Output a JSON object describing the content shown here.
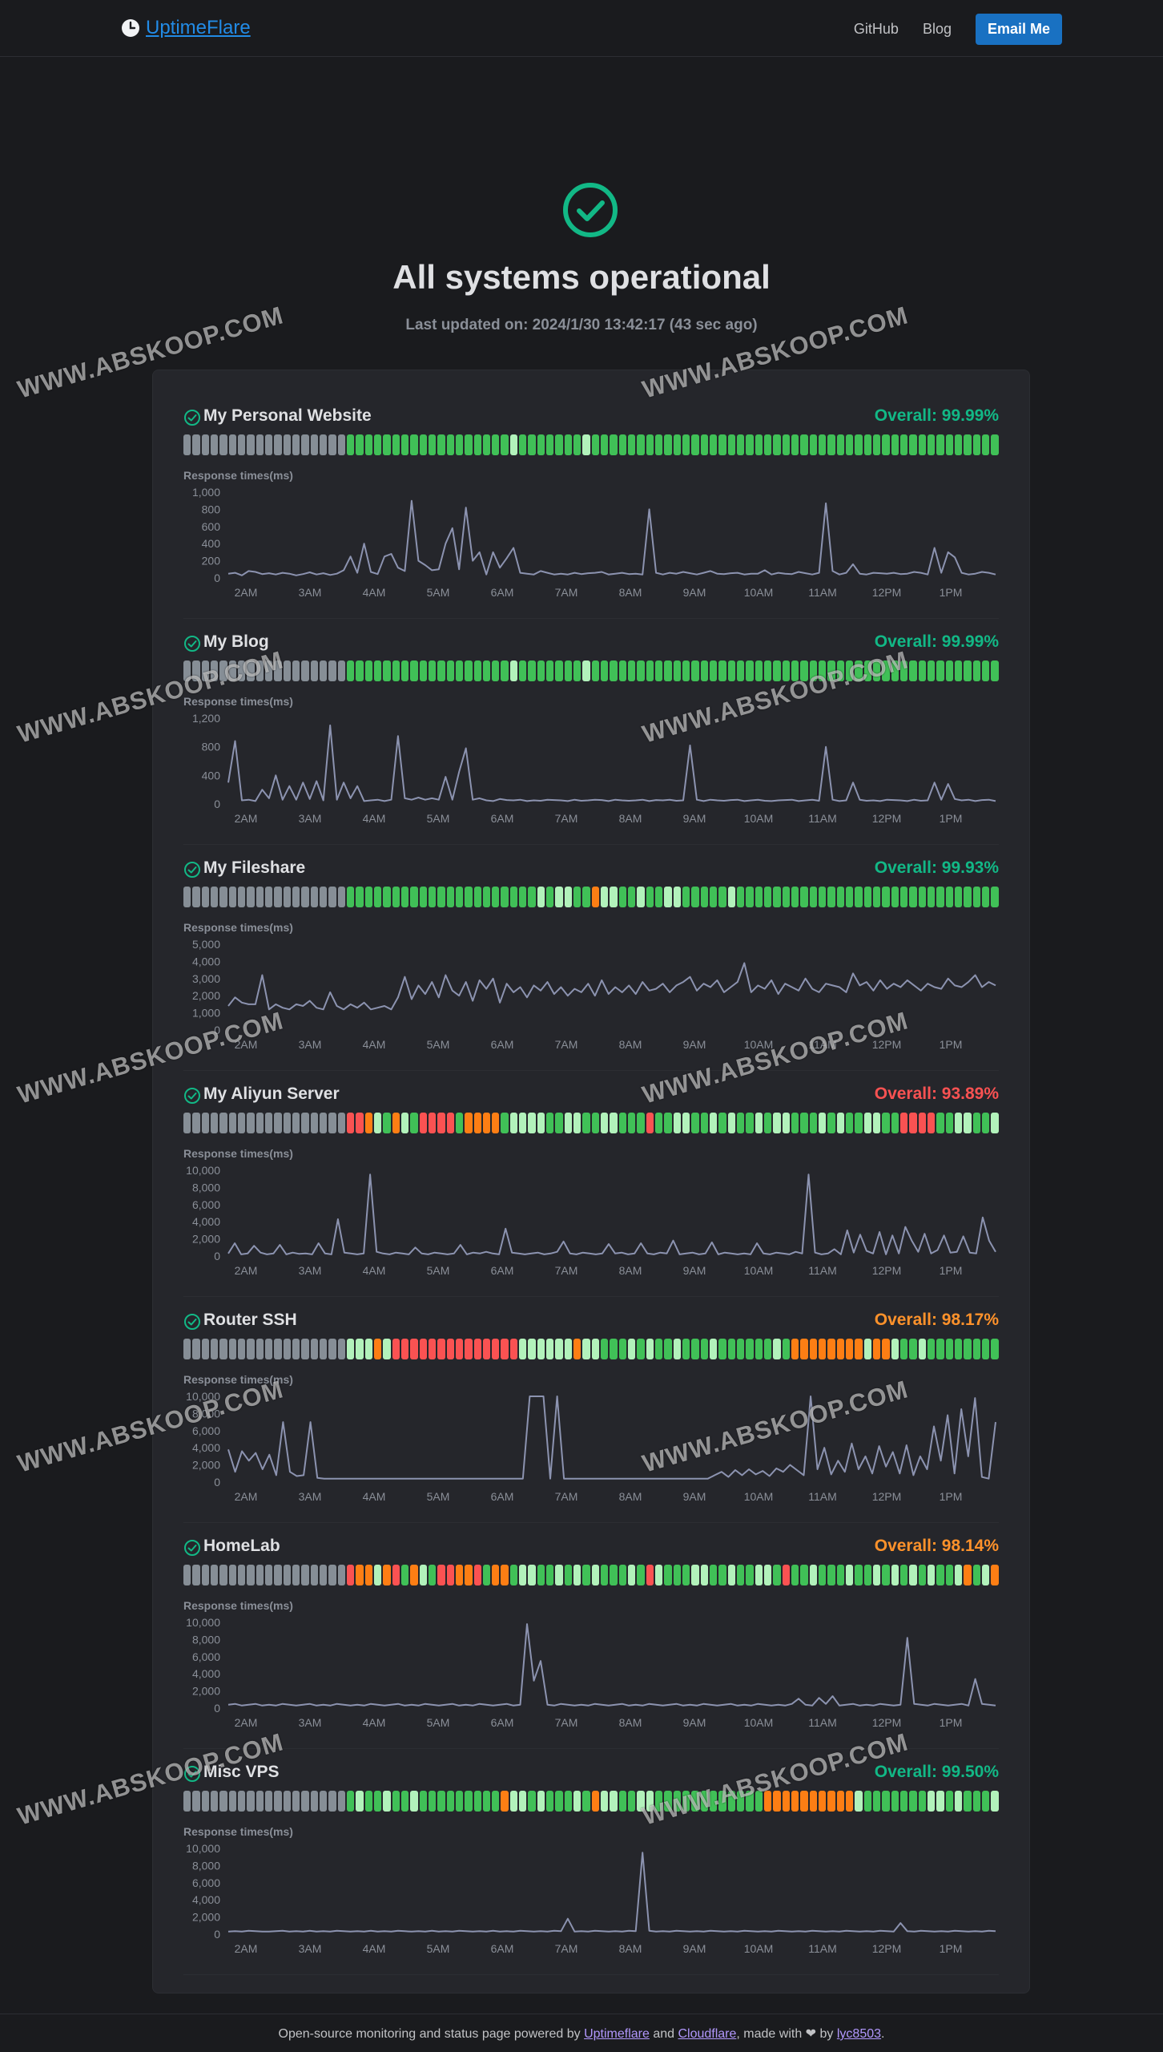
{
  "header": {
    "brand": "UptimeFlare",
    "links": [
      "GitHub",
      "Blog"
    ],
    "email_button": "Email Me"
  },
  "status": {
    "title": "All systems operational",
    "last_updated": "Last updated on: 2024/1/30 13:42:17 (43 sec ago)"
  },
  "chart_label": "Response times(ms)",
  "time_ticks": [
    "2AM",
    "3AM",
    "4AM",
    "5AM",
    "6AM",
    "7AM",
    "8AM",
    "9AM",
    "10AM",
    "11AM",
    "12PM",
    "1PM"
  ],
  "colors": {
    "green": "#40c057",
    "light_green": "#b2f2bb",
    "gray": "#868e96",
    "orange": "#fd7e14",
    "red": "#fa5252",
    "overall_green": "#12b886",
    "overall_orange": "#ff922b",
    "overall_red": "#fa5252",
    "line": "#8c93b0"
  },
  "watermark_text": "WWW.ABSKOOP.COM",
  "monitors": [
    {
      "name": "My Personal Website",
      "overall": "Overall: 99.99%",
      "overall_color": "#12b886",
      "status_bars": "GGGGGGGGGGGGGGGGGGNNNNNNNNNNNNNNNNNNLNNNNNNNLNNNNNNNNNNNNNNNNNNNNNNNNNNNNNNNNNNNNNNNNNNNNNN",
      "y_ticks": [
        "1,000",
        "800",
        "600",
        "400",
        "200",
        "0"
      ],
      "y_max": 1000,
      "chart_data": {
        "type": "line",
        "y": [
          50,
          60,
          30,
          80,
          70,
          45,
          55,
          40,
          60,
          50,
          30,
          45,
          65,
          40,
          55,
          35,
          50,
          90,
          250,
          60,
          400,
          70,
          45,
          250,
          280,
          120,
          80,
          900,
          200,
          150,
          90,
          100,
          400,
          580,
          100,
          820,
          200,
          300,
          40,
          300,
          120,
          230,
          350,
          60,
          50,
          40,
          80,
          60,
          40,
          50,
          40,
          60,
          45,
          55,
          60,
          70,
          40,
          50,
          60,
          45,
          50,
          40,
          800,
          60,
          40,
          60,
          50,
          70,
          55,
          40,
          60,
          80,
          50,
          45,
          55,
          60,
          40,
          50,
          50,
          90,
          40,
          60,
          50,
          45,
          70,
          55,
          40,
          60,
          870,
          80,
          40,
          60,
          160,
          50,
          40,
          60,
          55,
          50,
          60,
          45,
          50,
          70,
          60,
          40,
          350,
          60,
          300,
          240,
          60,
          40,
          50,
          70,
          60,
          40
        ]
      }
    },
    {
      "name": "My Blog",
      "overall": "Overall: 99.99%",
      "overall_color": "#12b886",
      "status_bars": "GGGGGGGGGGGGGGGGGGNNNNNNNNNNNNNNNNNNLNNNNNNNLNNNNNNNNNNNNNNNNNNNNNNNNNNNNNNNNNNNNNNNNNNNNNN",
      "y_ticks": [
        "1,200",
        "800",
        "400",
        "0"
      ],
      "y_max": 1200,
      "chart_data": {
        "type": "line",
        "y": [
          300,
          880,
          50,
          60,
          40,
          200,
          80,
          400,
          60,
          250,
          60,
          300,
          70,
          320,
          50,
          1100,
          60,
          300,
          80,
          250,
          40,
          50,
          60,
          40,
          60,
          950,
          80,
          60,
          90,
          60,
          80,
          60,
          380,
          60,
          450,
          780,
          60,
          80,
          50,
          40,
          70,
          55,
          50,
          60,
          40,
          50,
          45,
          60,
          55,
          50,
          40,
          60,
          45,
          50,
          60,
          55,
          40,
          60,
          50,
          45,
          50,
          60,
          40,
          55,
          50,
          60,
          45,
          50,
          820,
          60,
          40,
          60,
          50,
          45,
          55,
          60,
          40,
          50,
          60,
          45,
          40,
          50,
          55,
          60,
          40,
          50,
          60,
          45,
          800,
          60,
          40,
          50,
          300,
          60,
          45,
          50,
          40,
          60,
          55,
          50,
          40,
          60,
          45,
          50,
          300,
          60,
          280,
          70,
          50,
          60,
          40,
          55,
          60,
          40
        ]
      }
    },
    {
      "name": "My Fileshare",
      "overall": "Overall: 99.93%",
      "overall_color": "#12b886",
      "status_bars": "GGGGGGGGGGGGGGGGGGNNNNNNNNNNNNNNNNNNNNNLNLLNNOLLNNLNNLLNNNNNLNNNNNNNNNNNNNNNNNNNNNNNNNNNNNN",
      "y_ticks": [
        "5,000",
        "4,000",
        "3,000",
        "2,000",
        "1,000",
        "0"
      ],
      "y_max": 5000,
      "chart_data": {
        "type": "line",
        "y": [
          1400,
          1900,
          1600,
          1500,
          1500,
          3200,
          1200,
          1500,
          1300,
          1200,
          1500,
          1400,
          1700,
          1300,
          1200,
          2200,
          1400,
          1200,
          1500,
          1300,
          1600,
          1200,
          1300,
          1400,
          1200,
          1900,
          3100,
          1800,
          2600,
          2100,
          2800,
          1900,
          3200,
          2300,
          2000,
          2800,
          1700,
          2900,
          2400,
          3000,
          1600,
          2700,
          2200,
          2500,
          1900,
          2600,
          2300,
          2800,
          2100,
          2500,
          2000,
          2400,
          2200,
          2700,
          2000,
          2900,
          2100,
          2500,
          2200,
          2600,
          2100,
          2800,
          2300,
          2400,
          2700,
          2200,
          2600,
          2800,
          3100,
          2300,
          2700,
          2500,
          2900,
          2200,
          2500,
          2800,
          3900,
          2200,
          2600,
          2400,
          2900,
          2100,
          2700,
          2500,
          2300,
          3000,
          2400,
          2200,
          2700,
          2600,
          2500,
          2200,
          3300,
          2600,
          2800,
          2300,
          2900,
          2400,
          2700,
          2500,
          2900,
          2600,
          2300,
          2700,
          2500,
          2400,
          3000,
          2600,
          2500,
          2800,
          3200,
          2500,
          2800,
          2600
        ]
      }
    },
    {
      "name": "My Aliyun Server",
      "overall": "Overall: 93.89%",
      "overall_color": "#fa5252",
      "status_bars": "GGGGGGGGGGGGGGGGGGRROLNOLNRRRRNOOOONLLLLNNLLNNLLNNNRNNLLNNLNLNNLNLLNNNLNLNNLLNNRRRRNNLLNNLNL",
      "y_ticks": [
        "10,000",
        "8,000",
        "6,000",
        "4,000",
        "2,000",
        "0"
      ],
      "y_max": 10000,
      "chart_data": {
        "type": "line",
        "y": [
          300,
          1500,
          200,
          300,
          1200,
          400,
          200,
          300,
          1300,
          200,
          400,
          250,
          300,
          200,
          1500,
          300,
          200,
          4300,
          400,
          300,
          200,
          300,
          9500,
          500,
          300,
          200,
          400,
          300,
          200,
          1000,
          300,
          200,
          400,
          300,
          200,
          300,
          1300,
          200,
          400,
          300,
          500,
          300,
          200,
          3200,
          400,
          300,
          200,
          300,
          400,
          200,
          300,
          500,
          1700,
          300,
          200,
          400,
          300,
          200,
          300,
          1400,
          300,
          400,
          200,
          300,
          1500,
          300,
          200,
          400,
          300,
          1800,
          200,
          300,
          400,
          200,
          300,
          1600,
          200,
          400,
          300,
          200,
          300,
          200,
          1500,
          300,
          200,
          400,
          300,
          200,
          500,
          300,
          9500,
          400,
          200,
          300,
          800,
          200,
          3000,
          400,
          2500,
          600,
          300,
          2800,
          200,
          2400,
          300,
          3400,
          1800,
          500,
          2600,
          300,
          700,
          2400,
          400,
          500,
          2300,
          400,
          300,
          4500,
          1800,
          500
        ]
      }
    },
    {
      "name": "Router SSH",
      "overall": "Overall: 98.17%",
      "overall_color": "#ff922b",
      "status_bars": "GGGGGGGGGGGGGGGGGGLLLOLRRRRRRRRRRRRRRLLLLLLOLLNNNLNLNNLNNNLNNNNNNLNOOOOOOOOLOOLNNLNNNNNNNNNNNONONLNNNNOLONRO",
      "y_ticks": [
        "10,000",
        "8,000",
        "6,000",
        "4,000",
        "2,000",
        "0"
      ],
      "y_max": 10000,
      "chart_data": {
        "type": "line",
        "y": [
          3800,
          1200,
          3600,
          2500,
          3400,
          1500,
          3200,
          800,
          7000,
          1200,
          700,
          800,
          7000,
          500,
          400,
          400,
          400,
          400,
          400,
          400,
          400,
          400,
          400,
          400,
          400,
          400,
          400,
          400,
          400,
          400,
          400,
          400,
          400,
          400,
          400,
          400,
          400,
          400,
          400,
          400,
          400,
          400,
          400,
          400,
          10000,
          10000,
          10000,
          400,
          10000,
          400,
          400,
          400,
          400,
          400,
          400,
          400,
          400,
          400,
          400,
          400,
          400,
          400,
          400,
          400,
          400,
          400,
          400,
          400,
          400,
          400,
          400,
          800,
          1200,
          600,
          1400,
          800,
          1500,
          900,
          1300,
          700,
          1600,
          1200,
          2000,
          1400,
          800,
          10000,
          1500,
          4000,
          900,
          2500,
          1200,
          4500,
          1500,
          3000,
          1000,
          4200,
          1800,
          3500,
          1000,
          4300,
          800,
          3000,
          1500,
          6500,
          2500,
          7800,
          1000,
          8500,
          3000,
          9800,
          600,
          400,
          7000
        ]
      }
    },
    {
      "name": "HomeLab",
      "overall": "Overall: 98.14%",
      "overall_color": "#ff922b",
      "status_bars": "GGGGGGGGGGGGGGGGGGROOLORNOLNRROORNOONLLNNLNLNLNNNLNRLNNNLLNNLNNLLNRNNLNNNLNNLNLNLNLNNLONLO",
      "y_ticks": [
        "10,000",
        "8,000",
        "6,000",
        "4,000",
        "2,000",
        "0"
      ],
      "y_max": 10000,
      "chart_data": {
        "type": "line",
        "y": [
          400,
          500,
          300,
          400,
          500,
          300,
          400,
          300,
          500,
          400,
          300,
          400,
          500,
          300,
          400,
          300,
          500,
          400,
          300,
          400,
          300,
          500,
          400,
          300,
          400,
          500,
          300,
          400,
          300,
          500,
          400,
          300,
          400,
          500,
          300,
          400,
          300,
          500,
          400,
          300,
          400,
          500,
          300,
          400,
          9800,
          3200,
          5500,
          400,
          300,
          500,
          400,
          300,
          400,
          300,
          500,
          400,
          300,
          400,
          500,
          300,
          400,
          300,
          500,
          400,
          300,
          400,
          500,
          300,
          400,
          300,
          500,
          400,
          300,
          400,
          500,
          300,
          400,
          300,
          500,
          400,
          300,
          400,
          300,
          500,
          1100,
          400,
          300,
          1200,
          500,
          1400,
          300,
          400,
          500,
          300,
          400,
          300,
          500,
          400,
          300,
          400,
          8200,
          500,
          400,
          300,
          500,
          400,
          300,
          400,
          500,
          300,
          3400,
          500,
          400,
          300
        ]
      }
    },
    {
      "name": "Misc VPS",
      "overall": "Overall: 99.50%",
      "overall_color": "#12b886",
      "status_bars": "GGGGGGGGGGGGGGGGGGNLNNLNNLNNNNNNNNNOLLNLNNNLNOLLNNLLNNNNNNNNNNNNOOOOOOOOOOLNNNNNNNLLNLNNNLN",
      "y_ticks": [
        "10,000",
        "8,000",
        "6,000",
        "4,000",
        "2,000",
        "0"
      ],
      "y_max": 10000,
      "chart_data": {
        "type": "line",
        "y": [
          300,
          350,
          300,
          400,
          350,
          300,
          300,
          350,
          400,
          300,
          350,
          300,
          400,
          300,
          350,
          300,
          400,
          350,
          300,
          350,
          300,
          400,
          300,
          350,
          300,
          400,
          350,
          300,
          350,
          300,
          400,
          300,
          350,
          300,
          400,
          350,
          300,
          350,
          300,
          400,
          300,
          350,
          300,
          400,
          350,
          300,
          350,
          300,
          400,
          350,
          1800,
          300,
          350,
          300,
          400,
          350,
          300,
          350,
          300,
          400,
          350,
          9500,
          400,
          300,
          350,
          300,
          400,
          350,
          300,
          350,
          300,
          400,
          350,
          300,
          350,
          300,
          400,
          350,
          300,
          350,
          300,
          400,
          350,
          300,
          350,
          300,
          400,
          350,
          300,
          350,
          300,
          400,
          350,
          300,
          350,
          300,
          400,
          350,
          300,
          1300,
          350,
          300,
          400,
          350,
          300,
          350,
          300,
          400,
          350,
          300,
          350,
          300,
          400,
          350
        ]
      }
    }
  ]
}
